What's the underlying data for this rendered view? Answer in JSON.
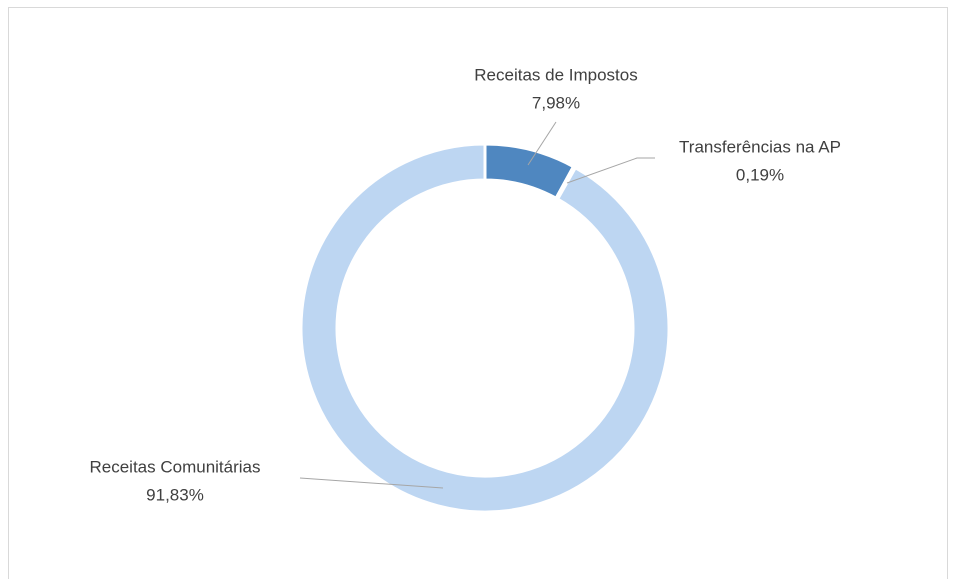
{
  "chart_data": {
    "type": "donut",
    "categories": [
      "Receitas de Impostos",
      "Transferências na AP",
      "Receitas Comunitárias"
    ],
    "values": [
      7.98,
      0.19,
      91.83
    ],
    "value_labels": [
      "7,98%",
      "0,19%",
      "91,83%"
    ],
    "colors": [
      "#4f87c0",
      "#9dbde3",
      "#bdd6f2"
    ]
  }
}
